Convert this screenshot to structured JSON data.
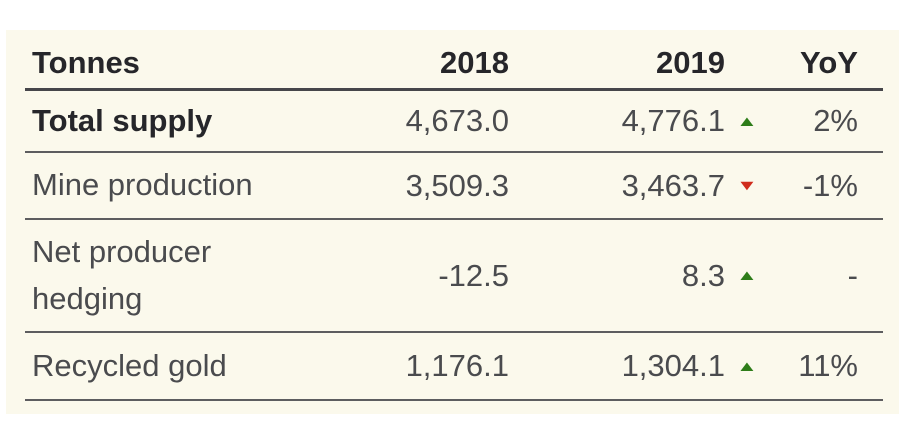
{
  "table": {
    "columns": [
      "Tonnes",
      "2018",
      "2019",
      "YoY"
    ],
    "rows": [
      {
        "label": "Total supply",
        "v2018": "4,673.0",
        "v2019": "4,776.1",
        "direction": "up",
        "icon": "▲",
        "icon_class": "marker up",
        "icon_name": "up-triangle-icon",
        "yoy": "2%"
      },
      {
        "label": "Mine production",
        "v2018": "3,509.3",
        "v2019": "3,463.7",
        "direction": "down",
        "icon": "▼",
        "icon_class": "marker down",
        "icon_name": "down-triangle-icon",
        "yoy": "-1%"
      },
      {
        "label": "Net producer hedging",
        "v2018": "-12.5",
        "v2019": "8.3",
        "direction": "up",
        "icon": "▲",
        "icon_class": "marker up",
        "icon_name": "up-triangle-icon",
        "yoy": "-"
      },
      {
        "label": "Recycled gold",
        "v2018": "1,176.1",
        "v2019": "1,304.1",
        "direction": "up",
        "icon": "▲",
        "icon_class": "marker up",
        "icon_name": "up-triangle-icon",
        "yoy": "11%"
      }
    ],
    "colors": {
      "positive": "#2e7d19",
      "negative": "#d02c1c",
      "panel_background": "#fbf9ec",
      "row_divider": "#5d5d5f",
      "header_divider": "#46464a",
      "text": "#4a4b4e",
      "bold_text": "#26262a"
    }
  },
  "chart_data": {
    "type": "table",
    "title": "",
    "unit": "Tonnes",
    "columns": [
      "Tonnes",
      "2018",
      "2019",
      "YoY"
    ],
    "rows": [
      [
        "Total supply",
        4673.0,
        4776.1,
        "2%"
      ],
      [
        "Mine production",
        3509.3,
        3463.7,
        "-1%"
      ],
      [
        "Net producer hedging",
        -12.5,
        8.3,
        "-"
      ],
      [
        "Recycled gold",
        1176.1,
        1304.1,
        "11%"
      ]
    ],
    "yoy_direction": [
      "up",
      "down",
      "up",
      "up"
    ]
  }
}
